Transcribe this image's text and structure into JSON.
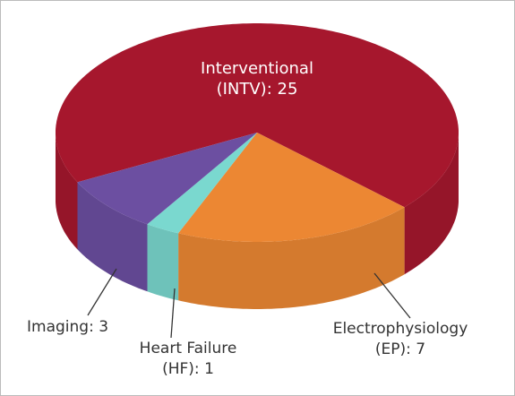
{
  "chart_data": {
    "type": "pie3d",
    "values": [
      25,
      7,
      1,
      3
    ],
    "value_labels": [
      [
        "Interventional",
        "(INTV): 25"
      ],
      [
        "Electrophysiology",
        "(EP): 7"
      ],
      [
        "Heart Failure",
        "(HF): 1"
      ],
      [
        "Imaging: 3"
      ]
    ],
    "colors": [
      "#a6172d",
      "#ec8733",
      "#7ad8cf",
      "#6c4fa1"
    ]
  }
}
